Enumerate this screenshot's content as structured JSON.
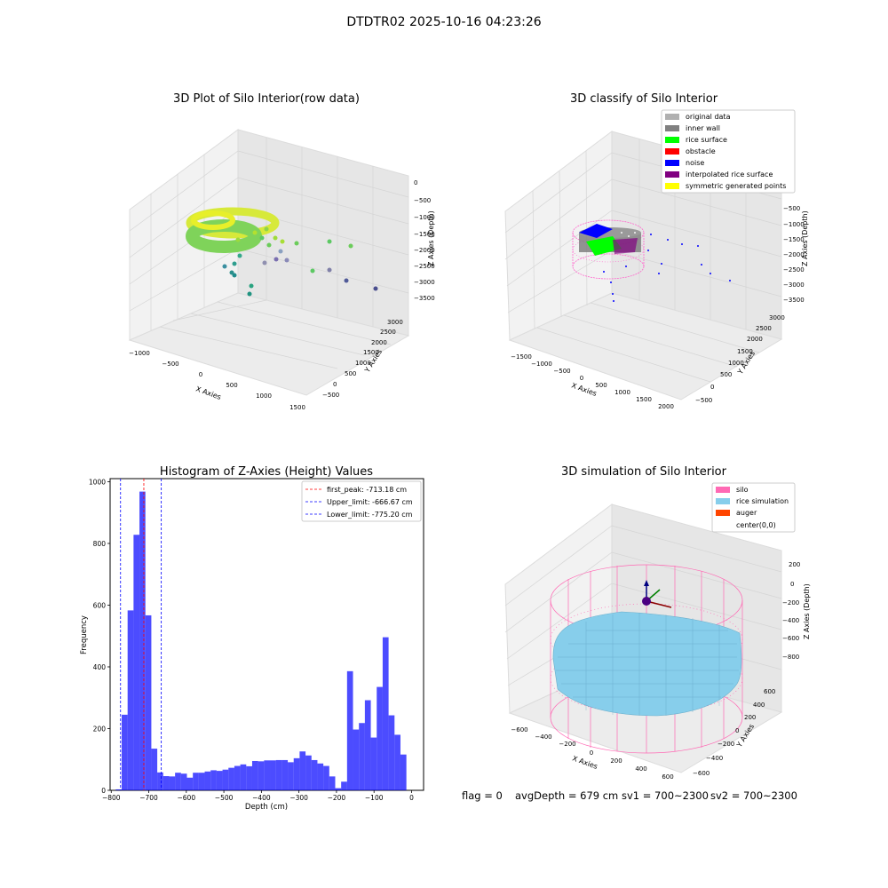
{
  "suptitle": "DTDTR02 2025-10-16 04:23:26",
  "panels": {
    "raw": {
      "title": "3D Plot of Silo Interior(row data)",
      "xlabel": "X Axies",
      "ylabel": "Y Axies",
      "zlabel": "Z Axies (Depth)",
      "xticks": [
        "−1000",
        "−500",
        "0",
        "500",
        "1000",
        "1500"
      ],
      "yticks": [
        "−500",
        "0",
        "500",
        "1000",
        "1500",
        "2000",
        "2500",
        "3000"
      ],
      "zticks": [
        "0",
        "−500",
        "−1000",
        "−1500",
        "−2000",
        "−2500",
        "−3000",
        "−3500"
      ]
    },
    "classify": {
      "title": "3D classify of Silo Interior",
      "xlabel": "X Axies",
      "ylabel": "Y Axies",
      "zlabel": "Z Axies (Depth)",
      "xticks": [
        "−1500",
        "−1000",
        "−500",
        "0",
        "500",
        "1000",
        "1500",
        "2000"
      ],
      "yticks": [
        "−500",
        "0",
        "500",
        "1000",
        "1500",
        "2000",
        "2500",
        "3000"
      ],
      "zticks": [
        "−500",
        "−1000",
        "−1500",
        "−2000",
        "−2500",
        "−3000",
        "−3500"
      ],
      "legend": [
        {
          "label": "original data",
          "color": "#b0b0b0"
        },
        {
          "label": "inner wall",
          "color": "#808080"
        },
        {
          "label": "rice surface",
          "color": "#00ff00"
        },
        {
          "label": "obstacle",
          "color": "#ff0000"
        },
        {
          "label": "noise",
          "color": "#0000ff"
        },
        {
          "label": "interpolated rice surface",
          "color": "#800080"
        },
        {
          "label": "symmetric generated points",
          "color": "#ffff00"
        }
      ]
    },
    "simulation": {
      "title": "3D simulation of Silo Interior",
      "xlabel": "X Axies",
      "ylabel": "Y Axies",
      "zlabel": "Z Axies (Depth)",
      "xticks": [
        "−600",
        "−400",
        "−200",
        "0",
        "200",
        "400",
        "600"
      ],
      "yticks": [
        "−600",
        "−400",
        "−200",
        "0",
        "200",
        "400",
        "600"
      ],
      "zticks": [
        "200",
        "0",
        "−200",
        "−400",
        "−600",
        "−800"
      ],
      "legend": [
        {
          "label": "silo",
          "color": "#ff69b4"
        },
        {
          "label": "rice simulation",
          "color": "#87ceeb"
        },
        {
          "label": "auger",
          "color": "#ff4500"
        },
        {
          "label": "center(0,0)",
          "color": "none"
        }
      ]
    }
  },
  "chart_data": {
    "type": "bar",
    "title": "Histogram of Z-Axies (Height) Values",
    "xlabel": "Depth (cm)",
    "ylabel": "Frequency",
    "xlim": [
      -803,
      32
    ],
    "ylim": [
      0,
      1010
    ],
    "xticks": [
      -800,
      -700,
      -600,
      -500,
      -400,
      -300,
      -200,
      -100,
      0
    ],
    "xtick_labels": [
      "−800",
      "−700",
      "−600",
      "−500",
      "−400",
      "−300",
      "−200",
      "−100",
      "0"
    ],
    "yticks": [
      0,
      200,
      400,
      600,
      800,
      1000
    ],
    "bar_color": "#0000ff",
    "bar_start": -788,
    "bin_width": 15.8,
    "values": [
      3,
      245,
      583,
      828,
      968,
      567,
      135,
      58,
      46,
      45,
      57,
      54,
      41,
      57,
      57,
      61,
      65,
      63,
      67,
      73,
      79,
      84,
      78,
      95,
      94,
      97,
      97,
      98,
      98,
      91,
      104,
      126,
      113,
      98,
      87,
      79,
      45,
      7,
      28,
      386,
      197,
      218,
      292,
      171,
      335,
      496,
      243,
      180,
      116
    ],
    "lines": [
      {
        "label": "first_peak: -713.18 cm",
        "x": -713.18,
        "color": "#ff0000"
      },
      {
        "label": "Upper_limit: -666.67 cm",
        "x": -666.67,
        "color": "#0000ff"
      },
      {
        "label": "Lower_limit: -775.20 cm",
        "x": -775.2,
        "color": "#0000ff"
      }
    ],
    "legend_position": "upper right"
  },
  "footer": {
    "flag": "flag = 0",
    "avg": "avgDepth = 679 cm",
    "sv1": "sv1 = 700~2300",
    "sv2": "sv2 = 700~2300"
  }
}
